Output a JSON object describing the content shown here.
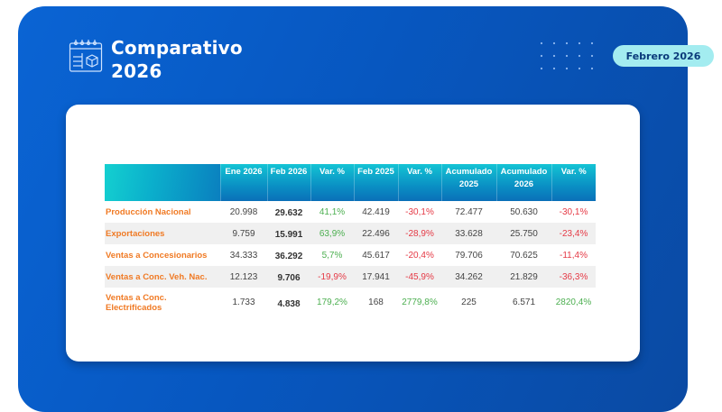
{
  "header": {
    "title_line1": "Comparativo",
    "title_line2": "2026",
    "icon": "calendar-box-icon",
    "period_badge": "Febrero 2026"
  },
  "colors": {
    "panel_blue": "#0757c0",
    "badge_bg": "#a3ecf0",
    "label_orange": "#f07a24",
    "positive_green": "#4caf50",
    "negative_red": "#e53945",
    "header_teal": "#14c4d4"
  },
  "table": {
    "columns": [
      "",
      "Ene 2026",
      "Feb 2026",
      "Var. %",
      "Feb 2025",
      "Var. %",
      "Acumulado 2025",
      "Acumulado 2026",
      "Var. %"
    ],
    "rows": [
      {
        "label": "Producción Nacional",
        "ene_2026": "20.998",
        "feb_2026": "29.632",
        "var1": "41,1%",
        "var1_sign": "pos",
        "feb_2025": "42.419",
        "var2": "-30,1%",
        "var2_sign": "neg",
        "acum_2025": "72.477",
        "acum_2026": "50.630",
        "var3": "-30,1%",
        "var3_sign": "neg"
      },
      {
        "label": "Exportaciones",
        "ene_2026": "9.759",
        "feb_2026": "15.991",
        "var1": "63,9%",
        "var1_sign": "pos",
        "feb_2025": "22.496",
        "var2": "-28,9%",
        "var2_sign": "neg",
        "acum_2025": "33.628",
        "acum_2026": "25.750",
        "var3": "-23,4%",
        "var3_sign": "neg"
      },
      {
        "label": "Ventas a Concesionarios",
        "ene_2026": "34.333",
        "feb_2026": "36.292",
        "var1": "5,7%",
        "var1_sign": "pos",
        "feb_2025": "45.617",
        "var2": "-20,4%",
        "var2_sign": "neg",
        "acum_2025": "79.706",
        "acum_2026": "70.625",
        "var3": "-11,4%",
        "var3_sign": "neg"
      },
      {
        "label": "Ventas a Conc. Veh. Nac.",
        "ene_2026": "12.123",
        "feb_2026": "9.706",
        "var1": "-19,9%",
        "var1_sign": "neg",
        "feb_2025": "17.941",
        "var2": "-45,9%",
        "var2_sign": "neg",
        "acum_2025": "34.262",
        "acum_2026": "21.829",
        "var3": "-36,3%",
        "var3_sign": "neg"
      },
      {
        "label": "Ventas a Conc. Electrificados",
        "ene_2026": "1.733",
        "feb_2026": "4.838",
        "var1": "179,2%",
        "var1_sign": "pos",
        "feb_2025": "168",
        "var2": "2779,8%",
        "var2_sign": "pos",
        "acum_2025": "225",
        "acum_2026": "6.571",
        "var3": "2820,4%",
        "var3_sign": "pos"
      }
    ]
  }
}
